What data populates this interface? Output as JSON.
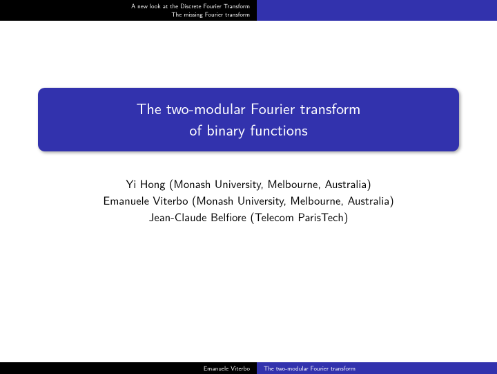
{
  "header": {
    "section_line1": "A new look at the Discrete Fourier Transform",
    "section_line2": "The missing Fourier transform"
  },
  "title": {
    "line1": "The two-modular Fourier transform",
    "line2": "of binary functions"
  },
  "authors": {
    "line1": "Yi Hong (Monash University, Melbourne, Australia)",
    "line2": "Emanuele Viterbo (Monash University, Melbourne, Australia)",
    "line3": "Jean-Claude Belfiore (Telecom ParisTech)"
  },
  "footer": {
    "author": "Emanuele Viterbo",
    "short_title": "The two-modular Fourier transform"
  },
  "colors": {
    "accent": "#3232ad",
    "dark": "#000000",
    "text": "#000000",
    "title_text": "#ffffff",
    "background": "#ffffff"
  }
}
